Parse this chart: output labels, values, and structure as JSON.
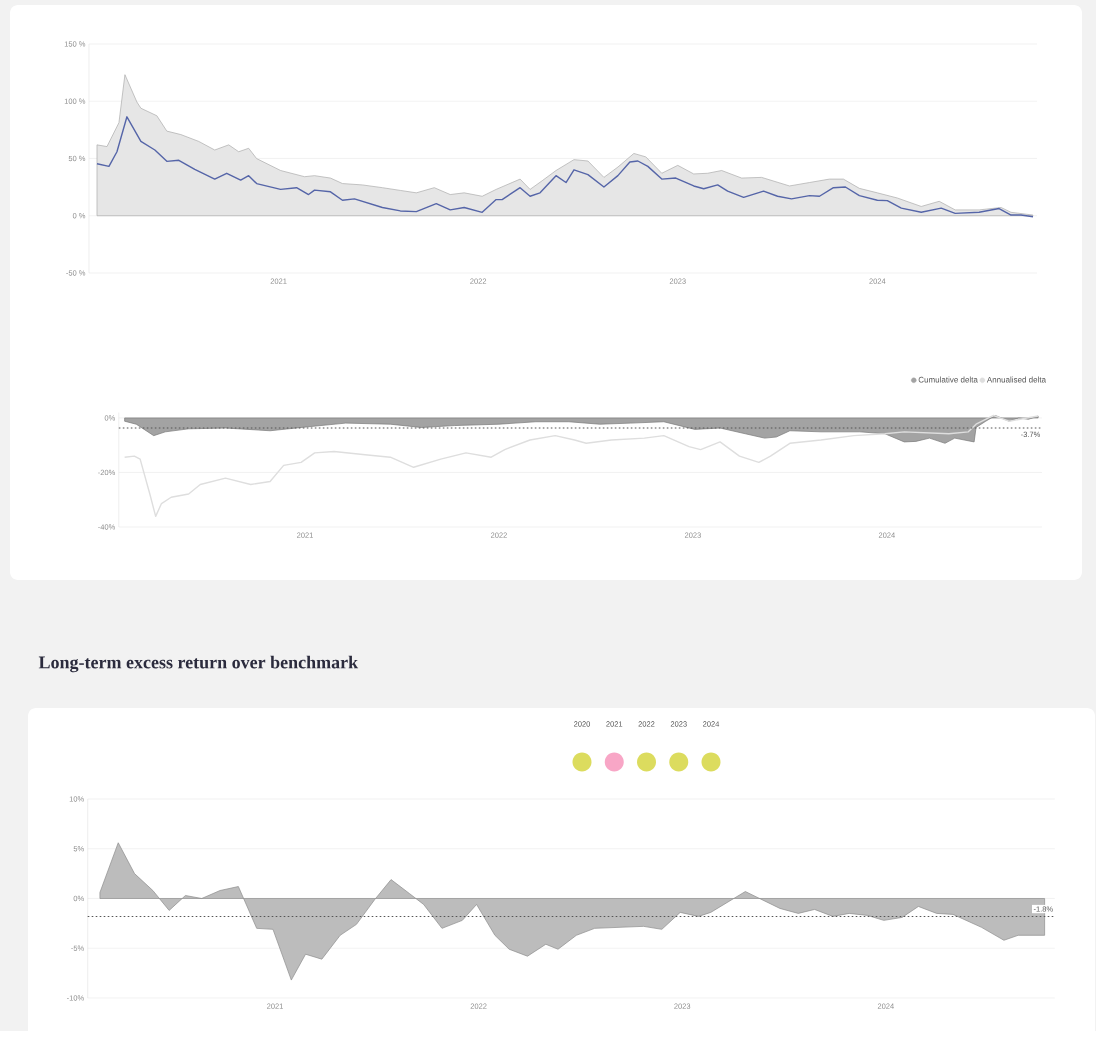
{
  "chart_data": [
    {
      "type": "line",
      "xlim": [
        2020.05,
        2024.8
      ],
      "ylim": [
        -50,
        150
      ],
      "xticks": [
        2021,
        2022,
        2023,
        2024
      ],
      "yticks": [
        {
          "value": -50,
          "label": "-50 %"
        },
        {
          "value": 0,
          "label": "0 %"
        },
        {
          "value": 50,
          "label": "50 %"
        },
        {
          "value": 100,
          "label": "100 %"
        },
        {
          "value": 150,
          "label": "150 %"
        }
      ],
      "grid": "y",
      "series": [
        {
          "type": "area",
          "color": "#e6e6e6",
          "x": [
            2020.09,
            2020.14,
            2020.2,
            2020.23,
            2020.29,
            2020.31,
            2020.39,
            2020.44,
            2020.51,
            2020.6,
            2020.68,
            2020.75,
            2020.8,
            2020.85,
            2020.89,
            2021.01,
            2021.13,
            2021.18,
            2021.26,
            2021.32,
            2021.42,
            2021.52,
            2021.61,
            2021.69,
            2021.78,
            2021.86,
            2021.93,
            2022.02,
            2022.09,
            2022.21,
            2022.26,
            2022.32,
            2022.39,
            2022.48,
            2022.55,
            2022.63,
            2022.7,
            2022.78,
            2022.84,
            2022.92,
            2023.0,
            2023.08,
            2023.15,
            2023.22,
            2023.32,
            2023.42,
            2023.56,
            2023.66,
            2023.76,
            2023.83,
            2023.91,
            2024.0,
            2024.1,
            2024.22,
            2024.31,
            2024.39,
            2024.51,
            2024.62,
            2024.67,
            2024.78
          ],
          "values": [
            61.9,
            60.4,
            81.3,
            123.2,
            99.3,
            93.9,
            87.3,
            73.9,
            70.9,
            64.9,
            57.4,
            61.9,
            55.9,
            58.9,
            49.9,
            39.5,
            34.1,
            35.0,
            32.9,
            28.1,
            26.9,
            24.5,
            22.1,
            20.0,
            24.5,
            18.5,
            20.0,
            17.0,
            23.0,
            32.0,
            23.0,
            30.5,
            39.5,
            49.0,
            47.8,
            33.5,
            42.5,
            54.4,
            51.4,
            37.1,
            44.0,
            36.5,
            37.1,
            39.5,
            32.9,
            33.5,
            26.0,
            29.0,
            32.0,
            32.0,
            23.9,
            20.0,
            15.5,
            8.1,
            12.6,
            5.1,
            5.1,
            7.2,
            3.0,
            0.6
          ]
        },
        {
          "type": "line",
          "color": "#5565a8",
          "x": [
            2020.09,
            2020.15,
            2020.19,
            2020.24,
            2020.31,
            2020.38,
            2020.44,
            2020.5,
            2020.58,
            2020.68,
            2020.74,
            2020.81,
            2020.85,
            2020.89,
            2021.01,
            2021.09,
            2021.15,
            2021.18,
            2021.26,
            2021.32,
            2021.38,
            2021.52,
            2021.61,
            2021.69,
            2021.79,
            2021.86,
            2021.93,
            2022.02,
            2022.09,
            2022.12,
            2022.21,
            2022.26,
            2022.31,
            2022.39,
            2022.44,
            2022.48,
            2022.55,
            2022.63,
            2022.7,
            2022.76,
            2022.8,
            2022.85,
            2022.92,
            2022.99,
            2023.08,
            2023.13,
            2023.2,
            2023.25,
            2023.33,
            2023.43,
            2023.5,
            2023.57,
            2023.66,
            2023.71,
            2023.78,
            2023.84,
            2023.91,
            2024.0,
            2024.05,
            2024.12,
            2024.22,
            2024.32,
            2024.39,
            2024.51,
            2024.61,
            2024.67,
            2024.72,
            2024.78
          ],
          "values": [
            45.4,
            43.1,
            55.9,
            86.4,
            64.9,
            57.4,
            47.5,
            48.4,
            40.4,
            32.0,
            37.1,
            31.1,
            35.0,
            28.1,
            23.0,
            24.5,
            18.5,
            22.4,
            20.9,
            13.5,
            14.7,
            7.2,
            4.2,
            3.6,
            10.5,
            5.1,
            7.2,
            3.0,
            14.1,
            14.1,
            24.5,
            17.0,
            20.0,
            35.0,
            29.0,
            40.1,
            35.9,
            25.1,
            35.0,
            46.9,
            47.8,
            43.1,
            32.0,
            32.9,
            26.0,
            23.6,
            26.9,
            21.5,
            16.1,
            21.5,
            17.0,
            14.7,
            17.6,
            17.0,
            24.5,
            25.1,
            17.6,
            13.5,
            13.2,
            6.6,
            3.0,
            6.6,
            2.1,
            3.0,
            6.3,
            0.6,
            0.6,
            -0.9
          ]
        }
      ]
    },
    {
      "type": "line",
      "xlim": [
        2020.04,
        2024.8
      ],
      "ylim": [
        -40,
        2
      ],
      "xticks": [
        2021,
        2022,
        2023,
        2024
      ],
      "yticks": [
        {
          "value": -40,
          "label": "-40%"
        },
        {
          "value": -20,
          "label": "-20%"
        },
        {
          "value": 0,
          "label": "0%"
        }
      ],
      "grid": "y",
      "legend": "top right",
      "ref_lines": [
        {
          "axis": "y",
          "value": -3.7,
          "label": "-3.7%",
          "line_style": "dotted",
          "color": "#555555"
        }
      ],
      "series": [
        {
          "name": "Cumulative delta",
          "type": "area",
          "color": "#a3a3a3",
          "x": [
            2020.07,
            2020.13,
            2020.22,
            2020.28,
            2020.4,
            2020.59,
            2020.82,
            2020.98,
            2021.21,
            2021.44,
            2021.6,
            2021.77,
            2022.0,
            2022.19,
            2022.36,
            2022.52,
            2022.68,
            2022.85,
            2023.01,
            2023.14,
            2023.27,
            2023.37,
            2023.43,
            2023.5,
            2023.66,
            2023.86,
            2023.99,
            2024.09,
            2024.15,
            2024.22,
            2024.3,
            2024.35,
            2024.45,
            2024.46,
            2024.51,
            2024.56,
            2024.63,
            2024.68,
            2024.73,
            2024.78
          ],
          "values": [
            -1.2,
            -2.3,
            -6.5,
            -5.1,
            -4.0,
            -3.7,
            -4.7,
            -3.5,
            -1.9,
            -2.3,
            -3.5,
            -2.8,
            -2.3,
            -1.4,
            -1.4,
            -2.3,
            -1.9,
            -1.4,
            -4.2,
            -3.7,
            -5.8,
            -7.4,
            -7.0,
            -4.7,
            -5.1,
            -5.1,
            -5.8,
            -8.8,
            -8.6,
            -7.4,
            -9.3,
            -7.4,
            -8.8,
            -3.5,
            -1.2,
            0.9,
            -1.2,
            0.0,
            -0.5,
            0.7
          ]
        },
        {
          "name": "Annualised delta",
          "type": "line",
          "color": "#dedede",
          "x": [
            2020.07,
            2020.12,
            2020.15,
            2020.2,
            2020.23,
            2020.26,
            2020.31,
            2020.4,
            2020.46,
            2020.59,
            2020.72,
            2020.82,
            2020.89,
            2020.98,
            2021.05,
            2021.15,
            2021.31,
            2021.44,
            2021.56,
            2021.7,
            2021.83,
            2021.96,
            2022.03,
            2022.16,
            2022.29,
            2022.39,
            2022.45,
            2022.58,
            2022.75,
            2022.85,
            2022.98,
            2023.04,
            2023.14,
            2023.24,
            2023.34,
            2023.4,
            2023.5,
            2023.66,
            2023.83,
            2023.99,
            2024.09,
            2024.32,
            2024.42,
            2024.46,
            2024.55,
            2024.63,
            2024.78
          ],
          "values": [
            -14.4,
            -14.0,
            -15.1,
            -27.9,
            -36.1,
            -31.4,
            -29.1,
            -27.9,
            -24.4,
            -22.1,
            -24.4,
            -23.3,
            -17.4,
            -16.3,
            -12.8,
            -12.3,
            -13.5,
            -14.4,
            -18.1,
            -15.1,
            -12.8,
            -14.4,
            -11.6,
            -8.1,
            -6.5,
            -8.1,
            -9.3,
            -8.1,
            -7.4,
            -6.5,
            -10.5,
            -11.6,
            -8.8,
            -14.0,
            -16.3,
            -14.0,
            -9.3,
            -8.1,
            -6.5,
            -5.8,
            -5.1,
            -5.8,
            -5.1,
            -2.3,
            0.9,
            -1.2,
            0.7
          ]
        }
      ]
    },
    {
      "type": "area",
      "title": "Long-term excess return over benchmark",
      "xlim": [
        2020.08,
        2024.83
      ],
      "ylim": [
        -10,
        10
      ],
      "xticks": [
        2021,
        2022,
        2023,
        2024
      ],
      "yticks": [
        {
          "value": -10,
          "label": "-10%"
        },
        {
          "value": -5,
          "label": "-5%"
        },
        {
          "value": 0,
          "label": "0%"
        },
        {
          "value": 5,
          "label": "5%"
        },
        {
          "value": 10,
          "label": "10%"
        }
      ],
      "grid": "y",
      "ref_lines": [
        {
          "axis": "y",
          "value": -1.8,
          "label": "-1.8%",
          "line_style": "dotted",
          "color": "#555555"
        }
      ],
      "series": [
        {
          "color": "#bcbcbc",
          "x": [
            2020.14,
            2020.23,
            2020.31,
            2020.4,
            2020.48,
            2020.56,
            2020.64,
            2020.73,
            2020.82,
            2020.91,
            2020.99,
            2021.08,
            2021.15,
            2021.23,
            2021.32,
            2021.4,
            2021.49,
            2021.57,
            2021.66,
            2021.73,
            2021.82,
            2021.92,
            2021.99,
            2022.08,
            2022.15,
            2022.24,
            2022.33,
            2022.39,
            2022.48,
            2022.57,
            2022.81,
            2022.9,
            2022.99,
            2023.08,
            2023.14,
            2023.31,
            2023.48,
            2023.57,
            2023.65,
            2023.74,
            2023.82,
            2023.91,
            2023.99,
            2024.08,
            2024.16,
            2024.25,
            2024.33,
            2024.47,
            2024.58,
            2024.65,
            2024.78
          ],
          "values": [
            0.6,
            5.6,
            2.5,
            0.8,
            -1.2,
            0.3,
            0.0,
            0.8,
            1.2,
            -3.0,
            -3.1,
            -8.2,
            -5.6,
            -6.1,
            -3.7,
            -2.6,
            -0.1,
            1.9,
            0.5,
            -0.6,
            -3.0,
            -2.2,
            -0.6,
            -3.7,
            -5.1,
            -5.8,
            -4.6,
            -5.1,
            -3.7,
            -3.0,
            -2.8,
            -3.1,
            -1.4,
            -1.8,
            -1.4,
            0.7,
            -1.0,
            -1.5,
            -1.1,
            -1.8,
            -1.5,
            -1.7,
            -2.2,
            -1.9,
            -0.8,
            -1.5,
            -1.6,
            -2.9,
            -4.2,
            -3.7,
            -3.7
          ]
        }
      ],
      "annotations": [
        "2020",
        "2021",
        "2022",
        "2023",
        "2024"
      ]
    }
  ]
}
